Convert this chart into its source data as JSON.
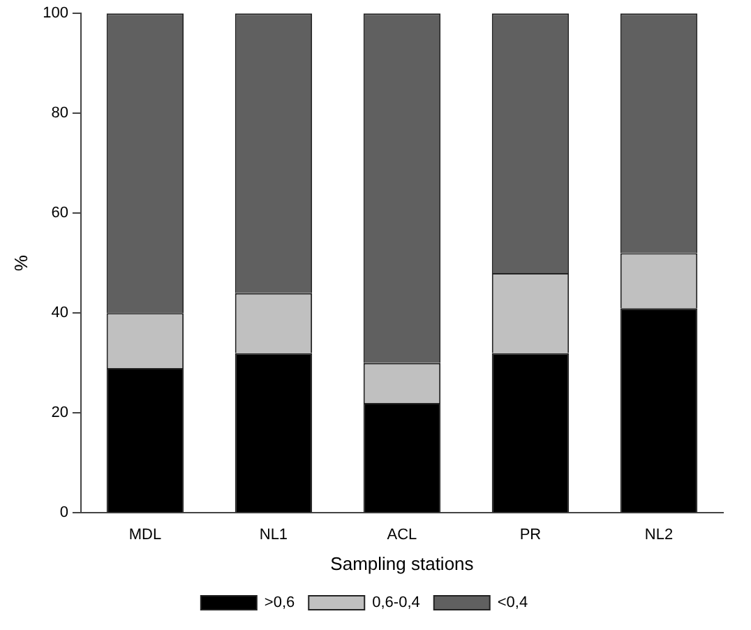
{
  "chart_data": {
    "type": "bar",
    "stacked": true,
    "xlabel": "Sampling stations",
    "ylabel": "%",
    "categories": [
      "MDL",
      "NL1",
      "ACL",
      "PR",
      "NL2"
    ],
    "series": [
      {
        "name": ">0,6",
        "color": "#000000",
        "values": [
          29,
          32,
          22,
          32,
          41
        ]
      },
      {
        "name": "0,6-0,4",
        "color": "#c0c0c0",
        "values": [
          11,
          12,
          8,
          16,
          11
        ]
      },
      {
        "name": "<0,4",
        "color": "#606060",
        "values": [
          60,
          56,
          70,
          52,
          48
        ]
      }
    ],
    "ylim": [
      0,
      100
    ],
    "yticks": [
      0,
      20,
      40,
      60,
      80,
      100
    ],
    "grid": false,
    "legend": "bottom"
  }
}
